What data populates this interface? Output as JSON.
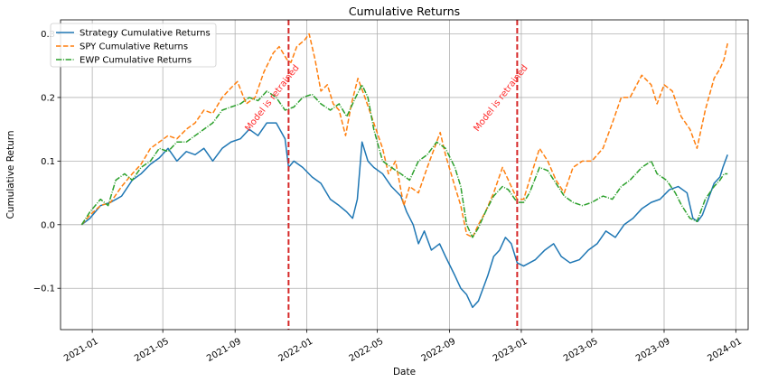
{
  "chart_data": {
    "type": "line",
    "title": "Cumulative Returns",
    "xlabel": "Date",
    "ylabel": "Cumulative Return",
    "grid": true,
    "legend_position": "top-left",
    "xlim": [
      "2020-11-08",
      "2024-01-22"
    ],
    "ylim": [
      -0.165,
      0.322
    ],
    "x_ticks": [
      "2021-01",
      "2021-05",
      "2021-09",
      "2022-01",
      "2022-05",
      "2022-09",
      "2023-01",
      "2023-05",
      "2023-09",
      "2024-01"
    ],
    "y_ticks": [
      -0.1,
      0.0,
      0.1,
      0.2,
      0.3
    ],
    "y_tick_labels": [
      "−0.1",
      "0.0",
      "0.1",
      "0.2",
      "0.3"
    ],
    "series": [
      {
        "name": "Strategy Cumulative Returns",
        "color": "#1f77b4",
        "style": "solid",
        "points": [
          [
            "2020-12-14",
            0.0
          ],
          [
            "2020-12-28",
            0.01
          ],
          [
            "2021-01-15",
            0.03
          ],
          [
            "2021-02-01",
            0.035
          ],
          [
            "2021-02-20",
            0.045
          ],
          [
            "2021-03-10",
            0.07
          ],
          [
            "2021-03-25",
            0.08
          ],
          [
            "2021-04-10",
            0.095
          ],
          [
            "2021-04-25",
            0.105
          ],
          [
            "2021-05-10",
            0.12
          ],
          [
            "2021-05-25",
            0.1
          ],
          [
            "2021-06-10",
            0.115
          ],
          [
            "2021-06-25",
            0.11
          ],
          [
            "2021-07-10",
            0.12
          ],
          [
            "2021-07-25",
            0.1
          ],
          [
            "2021-08-10",
            0.12
          ],
          [
            "2021-08-25",
            0.13
          ],
          [
            "2021-09-10",
            0.135
          ],
          [
            "2021-09-25",
            0.15
          ],
          [
            "2021-10-10",
            0.14
          ],
          [
            "2021-10-25",
            0.16
          ],
          [
            "2021-11-10",
            0.16
          ],
          [
            "2021-11-25",
            0.135
          ],
          [
            "2021-12-01",
            0.09
          ],
          [
            "2021-12-10",
            0.1
          ],
          [
            "2021-12-25",
            0.09
          ],
          [
            "2022-01-10",
            0.075
          ],
          [
            "2022-01-25",
            0.065
          ],
          [
            "2022-02-10",
            0.04
          ],
          [
            "2022-02-25",
            0.03
          ],
          [
            "2022-03-10",
            0.02
          ],
          [
            "2022-03-20",
            0.01
          ],
          [
            "2022-03-28",
            0.04
          ],
          [
            "2022-04-05",
            0.13
          ],
          [
            "2022-04-15",
            0.1
          ],
          [
            "2022-04-25",
            0.09
          ],
          [
            "2022-05-10",
            0.08
          ],
          [
            "2022-05-25",
            0.06
          ],
          [
            "2022-06-10",
            0.045
          ],
          [
            "2022-06-20",
            0.02
          ],
          [
            "2022-07-01",
            0.0
          ],
          [
            "2022-07-10",
            -0.03
          ],
          [
            "2022-07-20",
            -0.01
          ],
          [
            "2022-08-01",
            -0.04
          ],
          [
            "2022-08-15",
            -0.03
          ],
          [
            "2022-08-25",
            -0.05
          ],
          [
            "2022-09-10",
            -0.08
          ],
          [
            "2022-09-20",
            -0.1
          ],
          [
            "2022-09-30",
            -0.11
          ],
          [
            "2022-10-10",
            -0.13
          ],
          [
            "2022-10-20",
            -0.12
          ],
          [
            "2022-10-28",
            -0.1
          ],
          [
            "2022-11-05",
            -0.08
          ],
          [
            "2022-11-15",
            -0.05
          ],
          [
            "2022-11-25",
            -0.04
          ],
          [
            "2022-12-05",
            -0.02
          ],
          [
            "2022-12-15",
            -0.03
          ],
          [
            "2022-12-25",
            -0.06
          ],
          [
            "2023-01-05",
            -0.065
          ],
          [
            "2023-01-15",
            -0.06
          ],
          [
            "2023-01-25",
            -0.055
          ],
          [
            "2023-02-10",
            -0.04
          ],
          [
            "2023-02-25",
            -0.03
          ],
          [
            "2023-03-10",
            -0.05
          ],
          [
            "2023-03-25",
            -0.06
          ],
          [
            "2023-04-10",
            -0.055
          ],
          [
            "2023-04-25",
            -0.04
          ],
          [
            "2023-05-10",
            -0.03
          ],
          [
            "2023-05-25",
            -0.01
          ],
          [
            "2023-06-10",
            -0.02
          ],
          [
            "2023-06-25",
            0.0
          ],
          [
            "2023-07-10",
            0.01
          ],
          [
            "2023-07-25",
            0.025
          ],
          [
            "2023-08-10",
            0.035
          ],
          [
            "2023-08-25",
            0.04
          ],
          [
            "2023-09-10",
            0.055
          ],
          [
            "2023-09-25",
            0.06
          ],
          [
            "2023-10-10",
            0.05
          ],
          [
            "2023-10-20",
            0.01
          ],
          [
            "2023-10-28",
            0.005
          ],
          [
            "2023-11-05",
            0.015
          ],
          [
            "2023-11-15",
            0.04
          ],
          [
            "2023-11-25",
            0.065
          ],
          [
            "2023-12-05",
            0.075
          ],
          [
            "2023-12-10",
            0.09
          ],
          [
            "2023-12-18",
            0.11
          ]
        ]
      },
      {
        "name": "SPY Cumulative Returns",
        "color": "#ff7f0e",
        "style": "dashed",
        "points": [
          [
            "2020-12-14",
            0.0
          ],
          [
            "2020-12-28",
            0.015
          ],
          [
            "2021-01-15",
            0.03
          ],
          [
            "2021-02-01",
            0.035
          ],
          [
            "2021-02-20",
            0.06
          ],
          [
            "2021-03-10",
            0.08
          ],
          [
            "2021-03-25",
            0.095
          ],
          [
            "2021-04-10",
            0.12
          ],
          [
            "2021-04-25",
            0.13
          ],
          [
            "2021-05-10",
            0.14
          ],
          [
            "2021-05-25",
            0.135
          ],
          [
            "2021-06-10",
            0.15
          ],
          [
            "2021-06-25",
            0.16
          ],
          [
            "2021-07-10",
            0.18
          ],
          [
            "2021-07-25",
            0.175
          ],
          [
            "2021-08-10",
            0.2
          ],
          [
            "2021-08-25",
            0.215
          ],
          [
            "2021-09-05",
            0.225
          ],
          [
            "2021-09-20",
            0.19
          ],
          [
            "2021-10-05",
            0.2
          ],
          [
            "2021-10-20",
            0.24
          ],
          [
            "2021-11-05",
            0.27
          ],
          [
            "2021-11-15",
            0.28
          ],
          [
            "2021-11-28",
            0.26
          ],
          [
            "2021-12-05",
            0.255
          ],
          [
            "2021-12-15",
            0.28
          ],
          [
            "2021-12-28",
            0.29
          ],
          [
            "2022-01-05",
            0.3
          ],
          [
            "2022-01-15",
            0.26
          ],
          [
            "2022-01-25",
            0.21
          ],
          [
            "2022-02-05",
            0.22
          ],
          [
            "2022-02-15",
            0.19
          ],
          [
            "2022-02-25",
            0.18
          ],
          [
            "2022-03-08",
            0.14
          ],
          [
            "2022-03-18",
            0.19
          ],
          [
            "2022-03-29",
            0.23
          ],
          [
            "2022-04-10",
            0.2
          ],
          [
            "2022-04-25",
            0.16
          ],
          [
            "2022-05-10",
            0.12
          ],
          [
            "2022-05-20",
            0.08
          ],
          [
            "2022-06-01",
            0.1
          ],
          [
            "2022-06-15",
            0.03
          ],
          [
            "2022-06-25",
            0.06
          ],
          [
            "2022-07-10",
            0.05
          ],
          [
            "2022-07-25",
            0.09
          ],
          [
            "2022-08-10",
            0.13
          ],
          [
            "2022-08-16",
            0.145
          ],
          [
            "2022-08-25",
            0.11
          ],
          [
            "2022-09-10",
            0.06
          ],
          [
            "2022-09-20",
            0.03
          ],
          [
            "2022-09-30",
            -0.015
          ],
          [
            "2022-10-10",
            -0.02
          ],
          [
            "2022-10-20",
            0.0
          ],
          [
            "2022-11-01",
            0.02
          ],
          [
            "2022-11-15",
            0.05
          ],
          [
            "2022-11-30",
            0.09
          ],
          [
            "2022-12-10",
            0.07
          ],
          [
            "2022-12-25",
            0.04
          ],
          [
            "2023-01-05",
            0.04
          ],
          [
            "2023-01-15",
            0.07
          ],
          [
            "2023-02-01",
            0.12
          ],
          [
            "2023-02-15",
            0.1
          ],
          [
            "2023-03-01",
            0.07
          ],
          [
            "2023-03-15",
            0.05
          ],
          [
            "2023-03-30",
            0.09
          ],
          [
            "2023-04-15",
            0.1
          ],
          [
            "2023-05-01",
            0.1
          ],
          [
            "2023-05-20",
            0.12
          ],
          [
            "2023-06-05",
            0.16
          ],
          [
            "2023-06-20",
            0.2
          ],
          [
            "2023-07-05",
            0.2
          ],
          [
            "2023-07-25",
            0.235
          ],
          [
            "2023-08-10",
            0.22
          ],
          [
            "2023-08-20",
            0.19
          ],
          [
            "2023-09-01",
            0.22
          ],
          [
            "2023-09-15",
            0.21
          ],
          [
            "2023-09-30",
            0.17
          ],
          [
            "2023-10-15",
            0.15
          ],
          [
            "2023-10-27",
            0.12
          ],
          [
            "2023-11-10",
            0.18
          ],
          [
            "2023-11-25",
            0.23
          ],
          [
            "2023-12-05",
            0.245
          ],
          [
            "2023-12-12",
            0.26
          ],
          [
            "2023-12-18",
            0.285
          ]
        ]
      },
      {
        "name": "EWP Cumulative Returns",
        "color": "#2ca02c",
        "style": "dashdot",
        "points": [
          [
            "2020-12-14",
            0.0
          ],
          [
            "2020-12-28",
            0.02
          ],
          [
            "2021-01-15",
            0.04
          ],
          [
            "2021-01-28",
            0.03
          ],
          [
            "2021-02-10",
            0.07
          ],
          [
            "2021-02-25",
            0.08
          ],
          [
            "2021-03-10",
            0.07
          ],
          [
            "2021-03-25",
            0.09
          ],
          [
            "2021-04-10",
            0.1
          ],
          [
            "2021-04-25",
            0.12
          ],
          [
            "2021-05-10",
            0.115
          ],
          [
            "2021-05-25",
            0.13
          ],
          [
            "2021-06-10",
            0.13
          ],
          [
            "2021-06-25",
            0.14
          ],
          [
            "2021-07-10",
            0.15
          ],
          [
            "2021-07-25",
            0.16
          ],
          [
            "2021-08-10",
            0.18
          ],
          [
            "2021-08-25",
            0.185
          ],
          [
            "2021-09-10",
            0.19
          ],
          [
            "2021-09-25",
            0.2
          ],
          [
            "2021-10-10",
            0.195
          ],
          [
            "2021-10-25",
            0.21
          ],
          [
            "2021-11-10",
            0.2
          ],
          [
            "2021-11-25",
            0.18
          ],
          [
            "2021-12-10",
            0.185
          ],
          [
            "2021-12-25",
            0.2
          ],
          [
            "2022-01-10",
            0.205
          ],
          [
            "2022-01-25",
            0.19
          ],
          [
            "2022-02-10",
            0.18
          ],
          [
            "2022-02-25",
            0.19
          ],
          [
            "2022-03-10",
            0.17
          ],
          [
            "2022-03-25",
            0.2
          ],
          [
            "2022-04-05",
            0.22
          ],
          [
            "2022-04-15",
            0.2
          ],
          [
            "2022-04-25",
            0.15
          ],
          [
            "2022-05-10",
            0.1
          ],
          [
            "2022-05-25",
            0.09
          ],
          [
            "2022-06-10",
            0.08
          ],
          [
            "2022-06-25",
            0.07
          ],
          [
            "2022-07-10",
            0.1
          ],
          [
            "2022-07-25",
            0.11
          ],
          [
            "2022-08-10",
            0.13
          ],
          [
            "2022-08-25",
            0.12
          ],
          [
            "2022-09-10",
            0.09
          ],
          [
            "2022-09-20",
            0.06
          ],
          [
            "2022-09-30",
            0.0
          ],
          [
            "2022-10-10",
            -0.02
          ],
          [
            "2022-10-20",
            -0.005
          ],
          [
            "2022-11-01",
            0.02
          ],
          [
            "2022-11-15",
            0.045
          ],
          [
            "2022-11-30",
            0.06
          ],
          [
            "2022-12-10",
            0.055
          ],
          [
            "2022-12-25",
            0.035
          ],
          [
            "2023-01-05",
            0.035
          ],
          [
            "2023-01-15",
            0.05
          ],
          [
            "2023-02-01",
            0.09
          ],
          [
            "2023-02-15",
            0.085
          ],
          [
            "2023-03-01",
            0.065
          ],
          [
            "2023-03-15",
            0.045
          ],
          [
            "2023-03-30",
            0.035
          ],
          [
            "2023-04-15",
            0.03
          ],
          [
            "2023-05-01",
            0.035
          ],
          [
            "2023-05-20",
            0.045
          ],
          [
            "2023-06-05",
            0.04
          ],
          [
            "2023-06-20",
            0.06
          ],
          [
            "2023-07-05",
            0.07
          ],
          [
            "2023-07-25",
            0.09
          ],
          [
            "2023-08-10",
            0.1
          ],
          [
            "2023-08-20",
            0.08
          ],
          [
            "2023-09-05",
            0.07
          ],
          [
            "2023-09-20",
            0.05
          ],
          [
            "2023-10-01",
            0.03
          ],
          [
            "2023-10-15",
            0.01
          ],
          [
            "2023-10-27",
            0.005
          ],
          [
            "2023-11-10",
            0.04
          ],
          [
            "2023-11-25",
            0.06
          ],
          [
            "2023-12-05",
            0.07
          ],
          [
            "2023-12-12",
            0.08
          ],
          [
            "2023-12-18",
            0.08
          ]
        ]
      }
    ],
    "annotations": [
      {
        "type": "vline",
        "x": "2021-12-01",
        "color": "#d62728",
        "style": "dashed",
        "text": "Model is retrained"
      },
      {
        "type": "vline",
        "x": "2022-12-25",
        "color": "#d62728",
        "style": "dashed",
        "text": "Model is retrained"
      }
    ]
  }
}
